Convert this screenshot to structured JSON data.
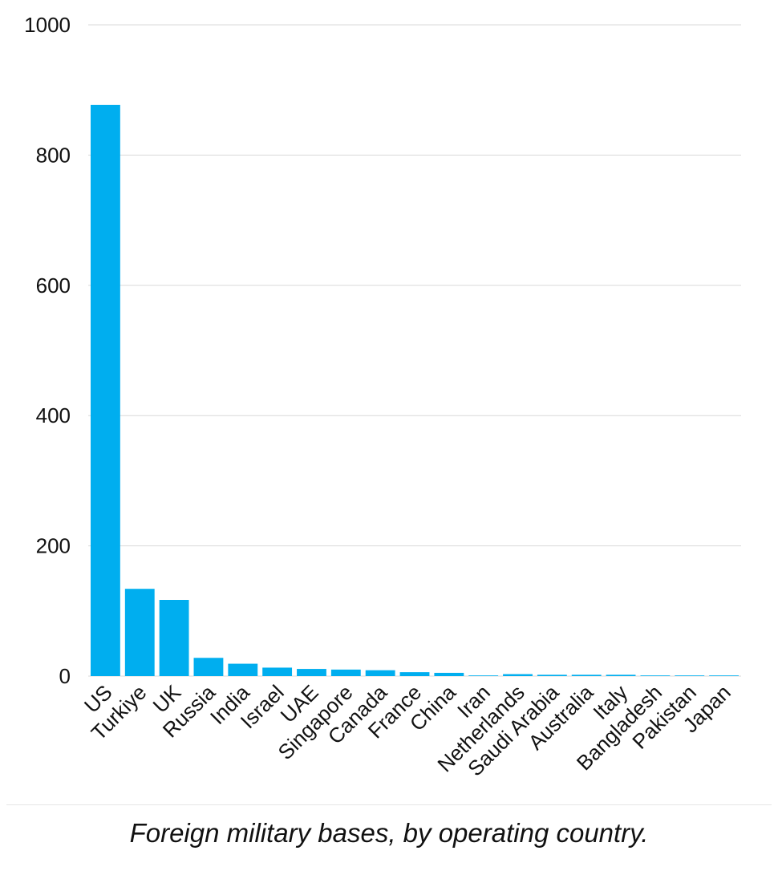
{
  "caption": "Foreign military bases, by operating country.",
  "colors": {
    "bar": "#00AEEF",
    "grid": "#d9d9d9",
    "text": "#111111"
  },
  "chart_data": {
    "type": "bar",
    "title": "",
    "xlabel": "",
    "ylabel": "",
    "ylim": [
      0,
      1000
    ],
    "yticks": [
      0,
      200,
      400,
      600,
      800,
      1000
    ],
    "grid": true,
    "categories": [
      "US",
      "Turkiye",
      "UK",
      "Russia",
      "India",
      "Israel",
      "UAE",
      "Singapore",
      "Canada",
      "France",
      "China",
      "Iran",
      "Netherlands",
      "Saudi Arabia",
      "Australia",
      "Italy",
      "Bangladesh",
      "Pakistan",
      "Japan"
    ],
    "values": [
      877,
      134,
      117,
      28,
      19,
      13,
      11,
      10,
      9,
      6,
      5,
      1,
      3,
      2,
      2,
      2,
      1,
      1,
      1
    ]
  }
}
